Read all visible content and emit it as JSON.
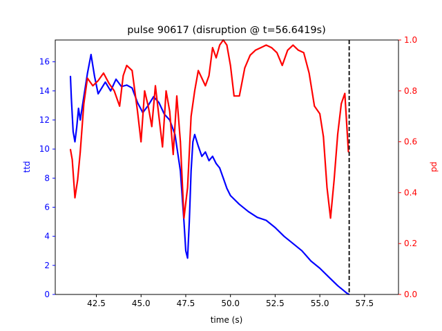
{
  "chart_data": {
    "type": "line",
    "title": "pulse 90617 (disruption @ t=56.6419s)",
    "xlabel": "time (s)",
    "ylabel_left": "ttd",
    "ylabel_right": "pd",
    "xlim": [
      40.2,
      59.4
    ],
    "ylim_left": [
      0,
      17.5
    ],
    "ylim_right": [
      0,
      1.0
    ],
    "x_ticks": [
      "42.5",
      "45.0",
      "47.5",
      "50.0",
      "52.5",
      "55.0",
      "57.5"
    ],
    "x_tick_values": [
      42.5,
      45.0,
      47.5,
      50.0,
      52.5,
      55.0,
      57.5
    ],
    "y_left_ticks": [
      "0",
      "2",
      "4",
      "6",
      "8",
      "10",
      "12",
      "14",
      "16"
    ],
    "y_left_tick_values": [
      0,
      2,
      4,
      6,
      8,
      10,
      12,
      14,
      16
    ],
    "y_right_ticks": [
      "0.0",
      "0.2",
      "0.4",
      "0.6",
      "0.8",
      "1.0"
    ],
    "y_right_tick_values": [
      0.0,
      0.2,
      0.4,
      0.6,
      0.8,
      1.0
    ],
    "disruption_time": 56.6419,
    "colors": {
      "ttd": "#0000ff",
      "pd": "#ff0000",
      "disruption_line": "#000000"
    },
    "series": [
      {
        "name": "ttd",
        "axis": "left",
        "x": [
          41.05,
          41.1,
          41.2,
          41.3,
          41.4,
          41.5,
          41.6,
          41.8,
          42.0,
          42.2,
          42.4,
          42.6,
          42.8,
          43.0,
          43.3,
          43.6,
          43.9,
          44.2,
          44.5,
          44.8,
          45.1,
          45.4,
          45.7,
          46.0,
          46.3,
          46.6,
          46.9,
          47.2,
          47.4,
          47.5,
          47.6,
          47.7,
          47.8,
          47.9,
          48.0,
          48.2,
          48.4,
          48.6,
          48.8,
          49.0,
          49.2,
          49.4,
          49.6,
          49.8,
          50.0,
          50.5,
          51.0,
          51.5,
          52.0,
          52.5,
          53.0,
          53.5,
          54.0,
          54.5,
          55.0,
          55.5,
          56.0,
          56.3,
          56.5,
          56.64
        ],
        "values": [
          15.0,
          13.5,
          11.2,
          10.5,
          11.5,
          12.8,
          12.0,
          13.6,
          15.2,
          16.5,
          15.0,
          13.8,
          14.2,
          14.6,
          14.0,
          14.8,
          14.3,
          14.4,
          14.2,
          13.2,
          12.5,
          13.0,
          13.6,
          13.2,
          12.4,
          12.0,
          11.0,
          8.5,
          5.0,
          3.0,
          2.5,
          5.0,
          8.5,
          10.5,
          11.0,
          10.2,
          9.5,
          9.8,
          9.2,
          9.5,
          9.0,
          8.7,
          8.0,
          7.3,
          6.8,
          6.2,
          5.7,
          5.3,
          5.1,
          4.6,
          4.0,
          3.5,
          3.0,
          2.3,
          1.8,
          1.2,
          0.6,
          0.3,
          0.1,
          0.0
        ]
      },
      {
        "name": "pd",
        "axis": "right",
        "x": [
          41.05,
          41.15,
          41.3,
          41.45,
          41.6,
          41.8,
          42.0,
          42.3,
          42.6,
          42.9,
          43.2,
          43.5,
          43.8,
          44.0,
          44.2,
          44.5,
          44.8,
          45.0,
          45.2,
          45.4,
          45.6,
          45.8,
          46.0,
          46.2,
          46.4,
          46.6,
          46.8,
          47.0,
          47.2,
          47.4,
          47.6,
          47.8,
          48.0,
          48.2,
          48.4,
          48.6,
          48.8,
          49.0,
          49.2,
          49.4,
          49.6,
          49.8,
          50.0,
          50.2,
          50.5,
          50.8,
          51.1,
          51.4,
          51.7,
          52.0,
          52.3,
          52.6,
          52.9,
          53.2,
          53.5,
          53.8,
          54.1,
          54.4,
          54.7,
          55.0,
          55.2,
          55.4,
          55.6,
          55.8,
          56.0,
          56.2,
          56.4,
          56.6
        ],
        "values": [
          0.57,
          0.53,
          0.38,
          0.45,
          0.56,
          0.75,
          0.85,
          0.82,
          0.84,
          0.87,
          0.83,
          0.8,
          0.74,
          0.86,
          0.9,
          0.88,
          0.72,
          0.6,
          0.8,
          0.74,
          0.66,
          0.82,
          0.7,
          0.58,
          0.8,
          0.72,
          0.55,
          0.78,
          0.6,
          0.3,
          0.42,
          0.7,
          0.8,
          0.88,
          0.85,
          0.82,
          0.86,
          0.97,
          0.93,
          0.98,
          1.0,
          0.98,
          0.9,
          0.78,
          0.78,
          0.89,
          0.94,
          0.96,
          0.97,
          0.98,
          0.97,
          0.95,
          0.9,
          0.96,
          0.98,
          0.96,
          0.95,
          0.87,
          0.74,
          0.71,
          0.62,
          0.42,
          0.3,
          0.45,
          0.63,
          0.75,
          0.79,
          0.56
        ]
      }
    ]
  }
}
